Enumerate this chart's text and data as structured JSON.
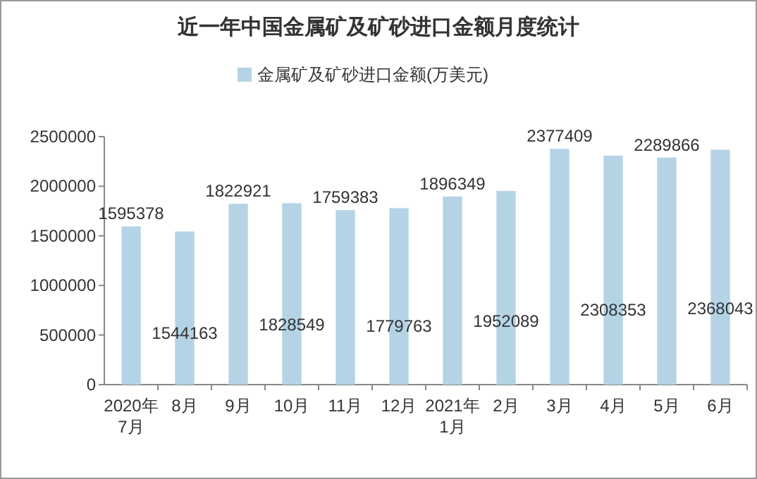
{
  "chart_data": {
    "type": "bar",
    "title": "近一年中国金属矿及矿砂进口金额月度统计",
    "categories": [
      "2020年\n7月",
      "8月",
      "9月",
      "10月",
      "11月",
      "12月",
      "2021年\n1月",
      "2月",
      "3月",
      "4月",
      "5月",
      "6月"
    ],
    "series": [
      {
        "name": "金属矿及矿砂进口金额(万美元)",
        "color": "#b4d4e6",
        "values": [
          1595378,
          1544163,
          1822921,
          1828549,
          1759383,
          1779763,
          1896349,
          1952089,
          2377409,
          2308353,
          2289866,
          2368043
        ]
      }
    ],
    "ylim": [
      0,
      2500000
    ],
    "yticks": [
      0,
      500000,
      1000000,
      1500000,
      2000000,
      2500000
    ],
    "data_labels": true,
    "legend": "top",
    "grid": false
  }
}
